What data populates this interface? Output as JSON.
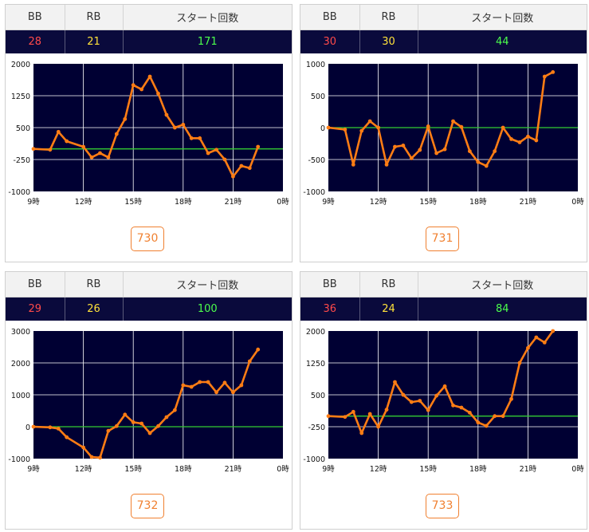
{
  "headers": {
    "bb": "BB",
    "rb": "RB",
    "start": "スタート回数"
  },
  "colors": {
    "plot_bg": "#000033",
    "line": "#ff7d14",
    "zero_line": "#33cc33",
    "grid": "#ffffff",
    "bb": "#ff4a4a",
    "rb": "#ffe23a",
    "start": "#4cff4c"
  },
  "panels": [
    {
      "bb": "28",
      "rb": "21",
      "start": "171",
      "machine": "730"
    },
    {
      "bb": "30",
      "rb": "30",
      "start": "44",
      "machine": "731"
    },
    {
      "bb": "29",
      "rb": "26",
      "start": "100",
      "machine": "732"
    },
    {
      "bb": "36",
      "rb": "24",
      "start": "84",
      "machine": "733"
    }
  ],
  "chart_data": [
    {
      "type": "line",
      "x_ticks": [
        "9時",
        "12時",
        "15時",
        "18時",
        "21時",
        "0時"
      ],
      "xlim": [
        9,
        24
      ],
      "ylim": [
        -1000,
        2000
      ],
      "y_ticks": [
        2000,
        1250,
        500,
        -250,
        -1000
      ],
      "series": [
        {
          "x": [
            9,
            10,
            10.5,
            11,
            12,
            12.5,
            13,
            13.5,
            14,
            14.5,
            15,
            15.5,
            16,
            16.5,
            17,
            17.5,
            18,
            18.5,
            19,
            19.5,
            20,
            20.5,
            21,
            21.5,
            22,
            22.5
          ],
          "y": [
            0,
            -20,
            400,
            180,
            50,
            -200,
            -100,
            -200,
            350,
            700,
            1500,
            1400,
            1700,
            1300,
            800,
            500,
            570,
            250,
            250,
            -100,
            -20,
            -250,
            -650,
            -400,
            -450,
            50
          ]
        }
      ]
    },
    {
      "type": "line",
      "x_ticks": [
        "9時",
        "12時",
        "15時",
        "18時",
        "21時",
        "0時"
      ],
      "xlim": [
        9,
        24
      ],
      "ylim": [
        -1000,
        1000
      ],
      "y_ticks": [
        1000,
        500,
        0,
        -500,
        -1000
      ],
      "series": [
        {
          "x": [
            9,
            10,
            10.5,
            11,
            11.5,
            12,
            12.5,
            13,
            13.5,
            14,
            14.5,
            15,
            15.5,
            16,
            16.5,
            17,
            17.5,
            18,
            18.5,
            19,
            19.5,
            20,
            20.5,
            21,
            21.5,
            22,
            22.5
          ],
          "y": [
            0,
            -30,
            -580,
            -50,
            100,
            0,
            -580,
            -300,
            -280,
            -480,
            -350,
            20,
            -400,
            -340,
            100,
            10,
            -370,
            -540,
            -600,
            -370,
            0,
            -180,
            -230,
            -140,
            -200,
            800,
            870
          ]
        }
      ]
    },
    {
      "type": "line",
      "x_ticks": [
        "9時",
        "12時",
        "15時",
        "18時",
        "21時",
        "0時"
      ],
      "xlim": [
        9,
        24
      ],
      "ylim": [
        -1000,
        3000
      ],
      "y_ticks": [
        3000,
        2000,
        1000,
        0,
        -1000
      ],
      "series": [
        {
          "x": [
            9,
            10,
            10.5,
            11,
            12,
            12.5,
            13,
            13.5,
            14,
            14.5,
            15,
            15.5,
            16,
            16.5,
            17,
            17.5,
            18,
            18.5,
            19,
            19.5,
            20,
            20.5,
            21,
            21.5,
            22,
            22.5
          ],
          "y": [
            0,
            -20,
            -60,
            -330,
            -650,
            -950,
            -970,
            -130,
            20,
            380,
            140,
            100,
            -200,
            20,
            300,
            520,
            1300,
            1250,
            1400,
            1400,
            1080,
            1380,
            1080,
            1300,
            2050,
            2420
          ]
        }
      ]
    },
    {
      "type": "line",
      "x_ticks": [
        "9時",
        "12時",
        "15時",
        "18時",
        "21時",
        "0時"
      ],
      "xlim": [
        9,
        24
      ],
      "ylim": [
        -1000,
        2000
      ],
      "y_ticks": [
        2000,
        1250,
        500,
        -250,
        -1000
      ],
      "series": [
        {
          "x": [
            9,
            10,
            10.5,
            11,
            11.5,
            12,
            12.5,
            13,
            13.5,
            14,
            14.5,
            15,
            15.5,
            16,
            16.5,
            17,
            17.5,
            18,
            18.5,
            19,
            19.5,
            20,
            20.5,
            21,
            21.5,
            22,
            22.5
          ],
          "y": [
            0,
            -20,
            100,
            -400,
            50,
            -250,
            150,
            800,
            500,
            330,
            360,
            140,
            480,
            700,
            250,
            200,
            80,
            -150,
            -230,
            0,
            0,
            400,
            1250,
            1600,
            1850,
            1730,
            2000
          ]
        }
      ]
    }
  ]
}
